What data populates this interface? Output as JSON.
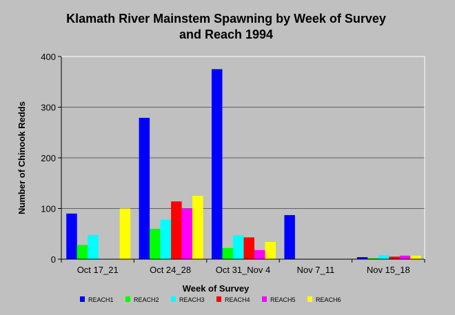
{
  "chart_data": {
    "type": "bar",
    "title_line1": "Klamath River Mainstem Spawning by Week of Survey",
    "title_line2": "and Reach 1994",
    "xlabel": "Week of Survey",
    "ylabel": "Number of Chinook Redds",
    "ylim": [
      0,
      400
    ],
    "yticks": [
      0,
      100,
      200,
      300,
      400
    ],
    "grid": true,
    "legend_position": "bottom",
    "categories": [
      "Oct 17_21",
      "Oct 24_28",
      "Oct 31_Nov 4",
      "Nov 7_11",
      "Nov 15_18"
    ],
    "series": [
      {
        "name": "REACH1",
        "color": "#0000ff",
        "values": [
          90,
          279,
          375,
          87,
          4
        ]
      },
      {
        "name": "REACH2",
        "color": "#00ff00",
        "values": [
          28,
          60,
          22,
          0,
          2
        ]
      },
      {
        "name": "REACH3",
        "color": "#00ffff",
        "values": [
          48,
          78,
          47,
          0,
          8
        ]
      },
      {
        "name": "REACH4",
        "color": "#ff0000",
        "values": [
          0,
          114,
          43,
          0,
          5
        ]
      },
      {
        "name": "REACH5",
        "color": "#ff00ff",
        "values": [
          0,
          100,
          18,
          0,
          7
        ]
      },
      {
        "name": "REACH6",
        "color": "#ffff00",
        "values": [
          100,
          125,
          34,
          0,
          7
        ]
      }
    ]
  }
}
